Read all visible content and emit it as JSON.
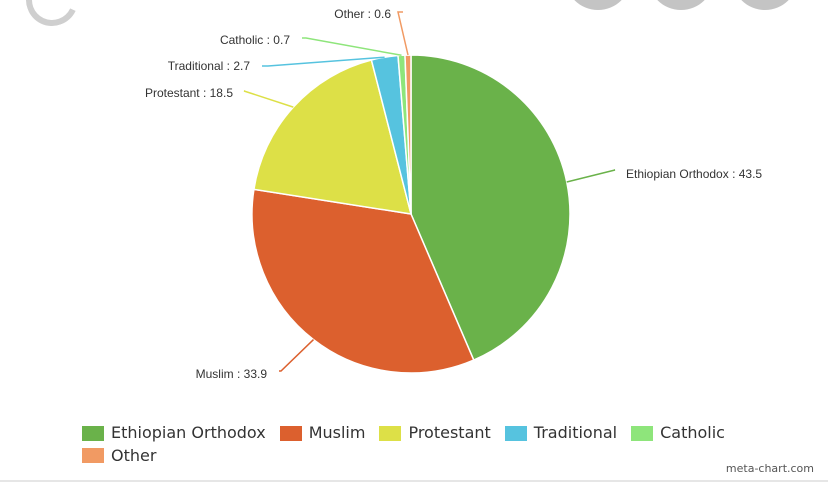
{
  "chart_data": {
    "type": "pie",
    "title": "",
    "slices": [
      {
        "name": "Ethiopian Orthodox",
        "value": 43.5,
        "label": "Ethiopian Orthodox : 43.5",
        "color": "#6ab24a"
      },
      {
        "name": "Muslim",
        "value": 33.9,
        "label": "Muslim : 33.9",
        "color": "#dc602e"
      },
      {
        "name": "Protestant",
        "value": 18.5,
        "label": "Protestant : 18.5",
        "color": "#dde047"
      },
      {
        "name": "Traditional",
        "value": 2.7,
        "label": "Traditional : 2.7",
        "color": "#56c3df"
      },
      {
        "name": "Catholic",
        "value": 0.7,
        "label": "Catholic : 0.7",
        "color": "#8ee57b"
      },
      {
        "name": "Other",
        "value": 0.6,
        "label": "Other : 0.6",
        "color": "#f19a63"
      }
    ],
    "legend": {
      "placement": "bottom",
      "entries": [
        "Ethiopian Orthodox",
        "Muslim",
        "Protestant",
        "Traditional",
        "Catholic",
        "Other"
      ]
    }
  },
  "credit": "meta-chart.com"
}
